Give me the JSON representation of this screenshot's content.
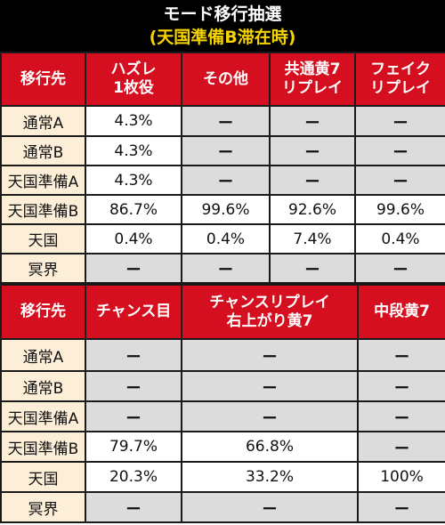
{
  "title": {
    "line1": "モード移行抽選",
    "line2": "(天国準備B滞在時)"
  },
  "table1": {
    "headers": [
      "移行先",
      "ハズレ\n1枚役",
      "その他",
      "共通黄7\nリプレイ",
      "フェイク\nリプレイ"
    ],
    "rows": [
      {
        "label": "通常A",
        "cells": [
          "4.3%",
          "ー",
          "ー",
          "ー"
        ]
      },
      {
        "label": "通常B",
        "cells": [
          "4.3%",
          "ー",
          "ー",
          "ー"
        ]
      },
      {
        "label": "天国準備A",
        "cells": [
          "4.3%",
          "ー",
          "ー",
          "ー"
        ]
      },
      {
        "label": "天国準備B",
        "cells": [
          "86.7%",
          "99.6%",
          "92.6%",
          "99.6%"
        ]
      },
      {
        "label": "天国",
        "cells": [
          "0.4%",
          "0.4%",
          "7.4%",
          "0.4%"
        ]
      },
      {
        "label": "冥界",
        "cells": [
          "ー",
          "ー",
          "ー",
          "ー"
        ]
      }
    ]
  },
  "table2": {
    "headers": [
      "移行先",
      "チャンス目",
      "チャンスリプレイ\n右上がり黄7",
      "中段黄7"
    ],
    "rows": [
      {
        "label": "通常A",
        "cells": [
          "ー",
          "ー",
          "ー"
        ]
      },
      {
        "label": "通常B",
        "cells": [
          "ー",
          "ー",
          "ー"
        ]
      },
      {
        "label": "天国準備A",
        "cells": [
          "ー",
          "ー",
          "ー"
        ]
      },
      {
        "label": "天国準備B",
        "cells": [
          "79.7%",
          "66.8%",
          "ー"
        ]
      },
      {
        "label": "天国",
        "cells": [
          "20.3%",
          "33.2%",
          "100%"
        ]
      },
      {
        "label": "冥界",
        "cells": [
          "ー",
          "ー",
          "ー"
        ]
      }
    ]
  }
}
